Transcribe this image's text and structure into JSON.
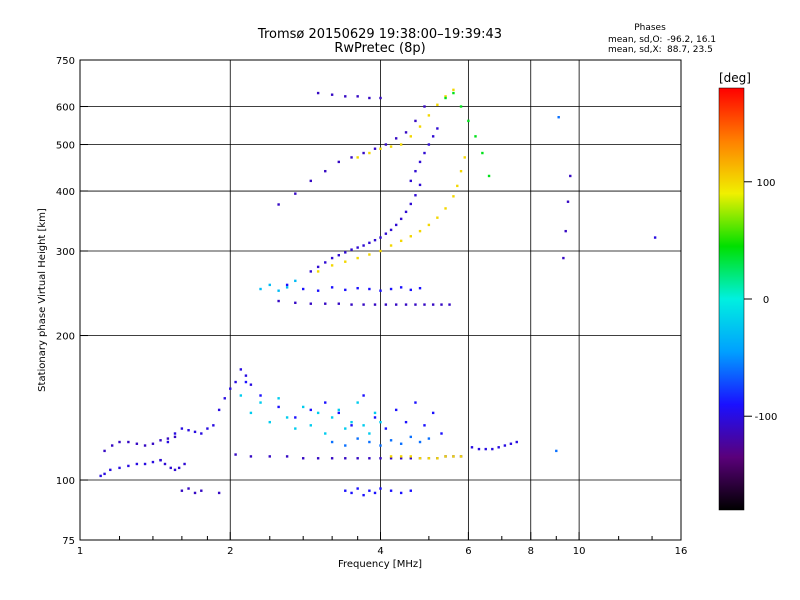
{
  "chart_data": {
    "type": "scatter",
    "title": "Tromsø 20150629 19:38:00–19:39:43",
    "subtitle": "RwPretec (8p)",
    "xlabel": "Frequency [MHz]",
    "ylabel": "Stationary phase Virtual Height [km]",
    "x_scale": "log",
    "y_scale": "log",
    "xlim": [
      1,
      16
    ],
    "ylim": [
      75,
      750
    ],
    "x_ticks": [
      1,
      2,
      4,
      6,
      8,
      10,
      16
    ],
    "x_tick_labels": [
      "1",
      "2",
      "4",
      "6",
      "8",
      "10",
      "16"
    ],
    "y_ticks": [
      75,
      100,
      200,
      300,
      400,
      500,
      600,
      750
    ],
    "y_tick_labels": [
      "75",
      "100",
      "200",
      "300",
      "400",
      "500",
      "600",
      "750"
    ],
    "x_gridlines": [
      2,
      4,
      6,
      8,
      10
    ],
    "y_gridlines": [
      100,
      200,
      300,
      400,
      500,
      600
    ],
    "minor_x_ticks": [
      1.2,
      1.4,
      1.6,
      1.8,
      2.4,
      2.8,
      3.2,
      3.6,
      5,
      7,
      9,
      12,
      14
    ],
    "grid": true,
    "stats": {
      "heading": "Phases",
      "line_o_label": "mean, sd,O:",
      "line_o_values": "-96.2, 16.1",
      "line_x_label": "mean, sd,X:",
      "line_x_values": "88.7, 23.5"
    },
    "colorbar": {
      "label": "[deg]",
      "range": [
        -180,
        180
      ],
      "ticks": [
        100,
        0,
        -100
      ],
      "tick_labels": [
        "100",
        "0",
        "-100"
      ],
      "colors": [
        "#000000",
        "#5a007a",
        "#1a10ff",
        "#00a0ff",
        "#00f0e0",
        "#00e000",
        "#f0f000",
        "#ff8000",
        "#ff0000"
      ]
    },
    "series": [
      {
        "x": [
          1.1,
          1.12,
          1.15,
          1.2,
          1.25,
          1.3,
          1.35,
          1.4,
          1.45
        ],
        "y": [
          102,
          103,
          105,
          106,
          107,
          108,
          108,
          109,
          110
        ],
        "phase": -100
      },
      {
        "x": [
          1.12,
          1.16,
          1.2,
          1.25,
          1.3,
          1.35,
          1.4,
          1.45,
          1.5,
          1.55
        ],
        "y": [
          115,
          118,
          120,
          120,
          119,
          118,
          119,
          121,
          122,
          123
        ],
        "phase": -110
      },
      {
        "x": [
          1.5,
          1.55,
          1.6,
          1.65,
          1.7,
          1.75,
          1.8,
          1.85
        ],
        "y": [
          120,
          125,
          128,
          127,
          126,
          125,
          128,
          130
        ],
        "phase": -100
      },
      {
        "x": [
          1.45,
          1.48,
          1.52,
          1.55,
          1.58,
          1.62
        ],
        "y": [
          110,
          108,
          106,
          105,
          106,
          108
        ],
        "phase": -105
      },
      {
        "x": [
          1.9,
          1.95,
          2.0,
          2.05,
          2.1,
          2.15,
          2.2
        ],
        "y": [
          140,
          148,
          155,
          160,
          170,
          165,
          158
        ],
        "phase": -100
      },
      {
        "x": [
          2.05,
          2.2,
          2.4,
          2.6,
          2.8,
          3.0,
          3.2,
          3.4,
          3.6,
          3.8,
          4.0,
          4.2,
          4.4,
          4.6,
          4.8,
          5.0,
          5.2,
          5.4,
          5.6,
          5.8
        ],
        "y": [
          113,
          112,
          112,
          112,
          111,
          111,
          111,
          111,
          111,
          111,
          111,
          111,
          111,
          111,
          111,
          111,
          111,
          112,
          112,
          112
        ],
        "phase": -110
      },
      {
        "x": [
          4.2,
          4.4,
          4.6,
          4.8,
          5.0,
          5.2,
          5.4,
          5.6,
          5.8
        ],
        "y": [
          112,
          112,
          112,
          111,
          111,
          111,
          112,
          112,
          112
        ],
        "phase": 100
      },
      {
        "x": [
          2.1,
          2.2,
          2.3,
          2.4,
          2.5,
          2.6,
          2.7,
          2.8,
          2.9,
          3.0,
          3.1,
          3.2,
          3.3,
          3.4,
          3.5,
          3.6,
          3.7,
          3.8,
          3.9,
          4.0
        ],
        "y": [
          150,
          138,
          145,
          132,
          148,
          135,
          128,
          142,
          130,
          138,
          125,
          135,
          140,
          128,
          132,
          145,
          130,
          125,
          138,
          132
        ],
        "phase": -20
      },
      {
        "x": [
          2.15,
          2.3,
          2.5,
          2.7,
          2.9,
          3.1,
          3.3,
          3.5,
          3.7,
          3.9,
          4.1,
          4.3,
          4.5,
          4.7,
          4.9,
          5.1,
          5.3
        ],
        "y": [
          160,
          150,
          142,
          135,
          140,
          145,
          138,
          130,
          150,
          135,
          128,
          140,
          132,
          145,
          130,
          138,
          125
        ],
        "phase": -90
      },
      {
        "x": [
          3.2,
          3.4,
          3.6,
          3.8,
          4.0,
          4.2,
          4.4,
          4.6,
          4.8,
          5.0
        ],
        "y": [
          120,
          118,
          122,
          120,
          118,
          121,
          119,
          123,
          120,
          122
        ],
        "phase": -60
      },
      {
        "x": [
          3.4,
          3.5,
          3.6,
          3.7,
          3.8,
          3.9,
          4.0,
          4.2,
          4.4,
          4.6
        ],
        "y": [
          95,
          94,
          96,
          93,
          95,
          94,
          96,
          95,
          94,
          95
        ],
        "phase": -90
      },
      {
        "x": [
          1.6,
          1.65,
          1.7,
          1.75,
          1.9
        ],
        "y": [
          95,
          96,
          94,
          95,
          94
        ],
        "phase": -110
      },
      {
        "x": [
          6.1,
          6.3,
          6.5,
          6.7,
          6.9,
          7.1,
          7.3,
          7.5
        ],
        "y": [
          117,
          116,
          116,
          116,
          117,
          118,
          119,
          120
        ],
        "phase": -100
      },
      {
        "x": [
          2.5,
          2.7,
          2.9,
          3.1,
          3.3,
          3.5,
          3.7,
          3.9,
          4.1,
          4.3,
          4.5,
          4.7,
          4.9,
          5.1,
          5.3,
          5.5
        ],
        "y": [
          236,
          234,
          233,
          233,
          233,
          232,
          232,
          232,
          232,
          232,
          232,
          232,
          232,
          232,
          232,
          232
        ],
        "phase": -110
      },
      {
        "x": [
          2.6,
          2.8,
          3.0,
          3.2,
          3.4,
          3.6,
          3.8,
          4.0,
          4.2,
          4.4,
          4.6,
          4.8
        ],
        "y": [
          255,
          250,
          248,
          252,
          249,
          251,
          250,
          248,
          250,
          252,
          249,
          251
        ],
        "phase": -90
      },
      {
        "x": [
          2.3,
          2.4,
          2.5,
          2.6,
          2.7
        ],
        "y": [
          250,
          255,
          248,
          252,
          260
        ],
        "phase": -30
      },
      {
        "x": [
          2.9,
          3.0,
          3.1,
          3.2,
          3.3,
          3.4,
          3.5,
          3.6,
          3.7,
          3.8,
          3.9,
          4.0,
          4.1,
          4.2,
          4.3,
          4.4,
          4.5,
          4.6,
          4.7,
          4.8
        ],
        "y": [
          272,
          278,
          284,
          290,
          294,
          298,
          302,
          305,
          308,
          312,
          316,
          320,
          326,
          332,
          340,
          350,
          362,
          376,
          392,
          412
        ],
        "phase": -105
      },
      {
        "x": [
          3.0,
          3.2,
          3.4,
          3.6,
          3.8,
          4.0,
          4.2,
          4.4,
          4.6,
          4.8,
          5.0,
          5.2,
          5.4,
          5.6,
          5.7,
          5.8,
          5.9
        ],
        "y": [
          272,
          280,
          285,
          290,
          295,
          300,
          308,
          315,
          322,
          330,
          340,
          352,
          368,
          390,
          410,
          440,
          470
        ],
        "phase": 100
      },
      {
        "x": [
          4.6,
          4.7,
          4.8,
          4.9,
          5.0,
          5.1,
          5.2
        ],
        "y": [
          420,
          440,
          460,
          480,
          500,
          520,
          540
        ],
        "phase": -105
      },
      {
        "x": [
          2.5,
          2.7,
          2.9,
          3.1,
          3.3,
          3.5,
          3.7,
          3.9,
          4.1,
          4.3,
          4.5,
          4.7,
          4.9
        ],
        "y": [
          375,
          395,
          420,
          440,
          460,
          470,
          480,
          490,
          500,
          515,
          530,
          560,
          600
        ],
        "phase": -110
      },
      {
        "x": [
          3.6,
          3.8,
          4.0,
          4.2,
          4.4,
          4.6,
          4.8,
          5.0,
          5.2,
          5.4,
          5.6
        ],
        "y": [
          470,
          480,
          490,
          495,
          500,
          520,
          545,
          575,
          605,
          630,
          650
        ],
        "phase": 100
      },
      {
        "x": [
          3.0,
          3.2,
          3.4,
          3.6,
          3.8,
          4.0
        ],
        "y": [
          640,
          635,
          630,
          630,
          625,
          625
        ],
        "phase": -110
      },
      {
        "x": [
          5.4,
          5.6,
          5.8,
          6.0,
          6.2,
          6.4,
          6.6
        ],
        "y": [
          625,
          640,
          600,
          560,
          520,
          480,
          430
        ],
        "phase": 40
      },
      {
        "x": [
          9.3,
          9.4,
          9.5,
          9.6
        ],
        "y": [
          290,
          330,
          380,
          430
        ],
        "phase": -110
      },
      {
        "x": [
          14.2
        ],
        "y": [
          320
        ],
        "phase": -100
      },
      {
        "x": [
          9.0,
          9.1
        ],
        "y": [
          115,
          570
        ],
        "phase": -60
      }
    ]
  }
}
